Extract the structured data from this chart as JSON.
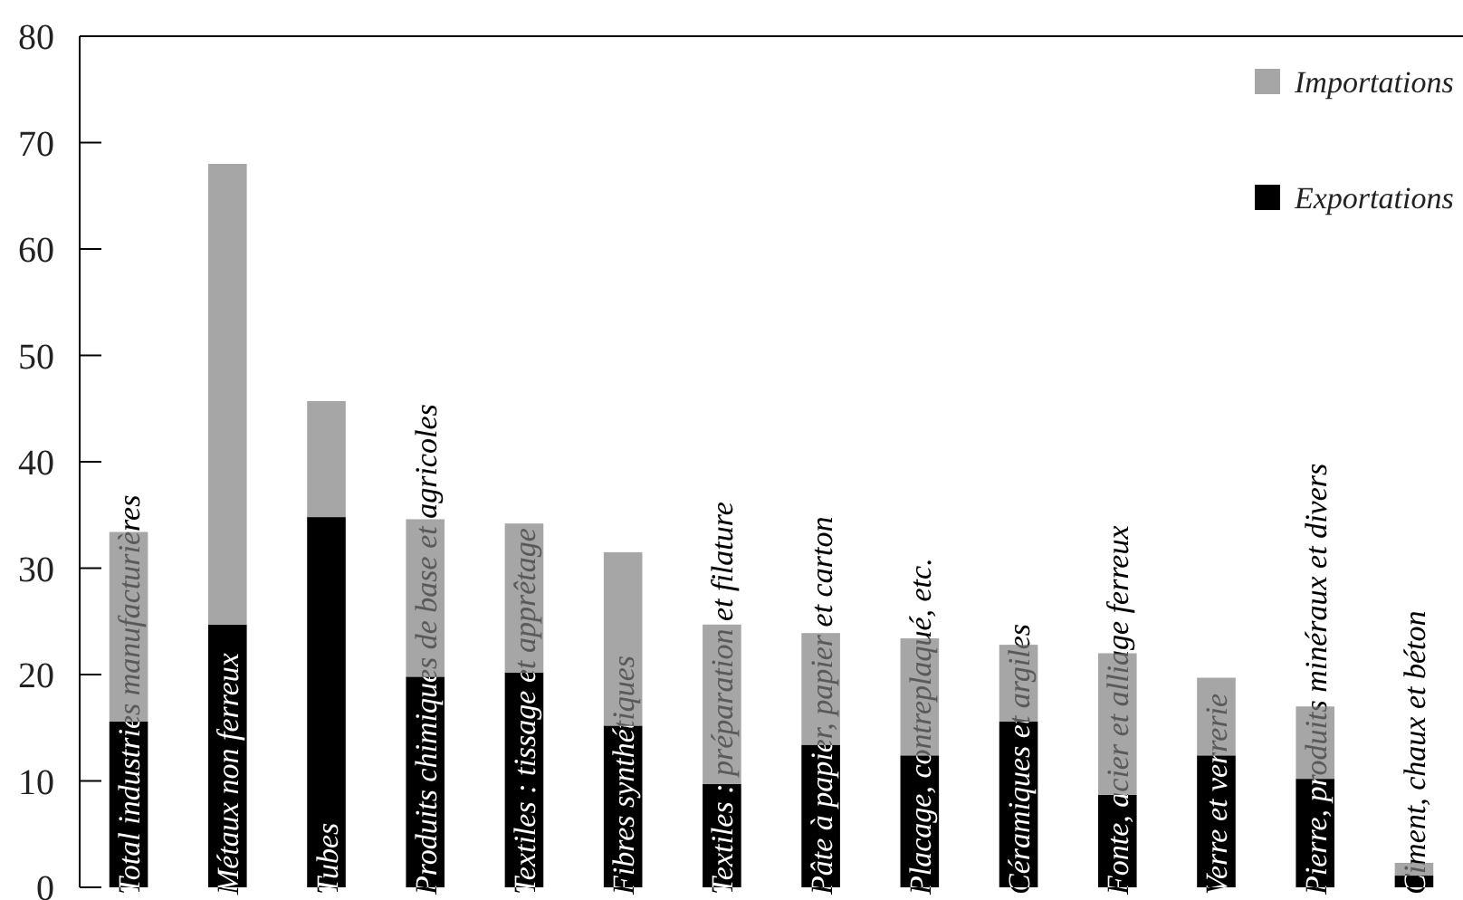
{
  "chart_data": {
    "type": "bar",
    "stacked": true,
    "categories": [
      "Total industries manufacturières",
      "Métaux non ferreux",
      "Tubes",
      "Produits chimiques de base et agricoles",
      "Textiles : tissage et apprêtage",
      "Fibres synthétiques",
      "Textiles : préparation et filature",
      "Pâte à papier, papier et carton",
      "Placage, contreplaqué, etc.",
      "Céramiques et argiles",
      "Fonte, acier et alliage ferreux",
      "Verre et verrerie",
      "Pierre, produits minéraux et divers",
      "Ciment, chaux et béton"
    ],
    "series": [
      {
        "name": "Exportations",
        "color": "#000000",
        "values": [
          15.6,
          24.7,
          34.8,
          19.8,
          20.2,
          15.2,
          9.7,
          13.4,
          12.4,
          15.6,
          8.7,
          12.4,
          10.2,
          1.1
        ]
      },
      {
        "name": "Importations",
        "color": "#a6a6a6",
        "values": [
          17.8,
          43.3,
          10.9,
          14.8,
          14.0,
          16.3,
          15.0,
          10.5,
          11.0,
          7.2,
          13.3,
          7.3,
          6.8,
          1.2
        ]
      }
    ],
    "ylim": [
      0,
      80
    ],
    "yticks": [
      0,
      10,
      20,
      30,
      40,
      50,
      60,
      70,
      80
    ],
    "grid": false,
    "legend": "top right"
  }
}
